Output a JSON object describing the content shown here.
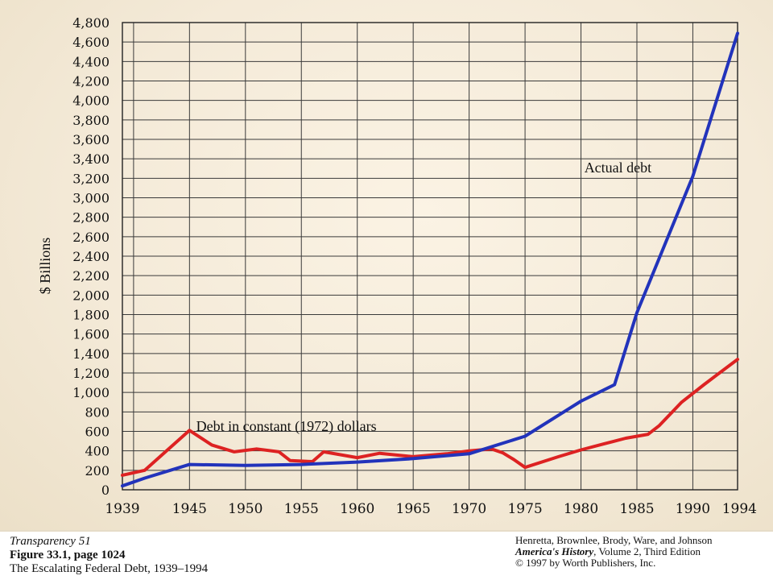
{
  "chart_data": {
    "type": "line",
    "ylabel": "$ Billions",
    "xlabel": "",
    "xlim": [
      1939,
      1994
    ],
    "ylim": [
      0,
      4800
    ],
    "x_ticks": [
      "1939",
      "1945",
      "1950",
      "1955",
      "1960",
      "1965",
      "1970",
      "1975",
      "1980",
      "1985",
      "1990",
      "1994"
    ],
    "y_ticks": [
      "0",
      "200",
      "400",
      "600",
      "800",
      "1,000",
      "1,200",
      "1,400",
      "1,600",
      "1,800",
      "2,000",
      "2,200",
      "2,400",
      "2,600",
      "2,800",
      "3,000",
      "3,200",
      "3,400",
      "3,600",
      "3,800",
      "4,000",
      "4,200",
      "4,400",
      "4,600",
      "4,800"
    ],
    "grid": true,
    "series": [
      {
        "name": "Actual debt",
        "color": "#2233bb",
        "x": [
          1939,
          1941,
          1945,
          1950,
          1955,
          1960,
          1965,
          1970,
          1975,
          1980,
          1983,
          1985,
          1990,
          1994
        ],
        "y": [
          40,
          120,
          260,
          250,
          260,
          285,
          320,
          370,
          550,
          910,
          1080,
          1820,
          3220,
          4690
        ]
      },
      {
        "name": "Debt in constant (1972) dollars",
        "color": "#dd2222",
        "x": [
          1939,
          1941,
          1945,
          1947,
          1949,
          1951,
          1953,
          1954,
          1956,
          1957,
          1960,
          1962,
          1965,
          1968,
          1970,
          1972,
          1973,
          1974,
          1975,
          1978,
          1980,
          1982,
          1984,
          1986,
          1987,
          1989,
          1991,
          1994
        ],
        "y": [
          150,
          200,
          610,
          460,
          390,
          420,
          390,
          300,
          290,
          390,
          330,
          375,
          340,
          370,
          400,
          420,
          380,
          310,
          230,
          340,
          410,
          470,
          530,
          570,
          660,
          900,
          1080,
          1340
        ]
      }
    ],
    "annotations": [
      {
        "text": "Actual debt",
        "x": 1980.3,
        "y": 3310
      },
      {
        "text": "Debt in constant (1972) dollars",
        "x": 1945.6,
        "y": 655
      }
    ]
  },
  "caption": {
    "transparency": "Transparency 51",
    "figure": "Figure 33.1, page 1024",
    "subtitle": "The Escalating Federal Debt, 1939–1994",
    "authors": "Henretta, Brownlee, Brody, Ware, and Johnson",
    "book_title": "America's History",
    "book_edition": ", Volume 2, Third Edition",
    "copyright": "© 1997 by Worth Publishers, Inc."
  }
}
